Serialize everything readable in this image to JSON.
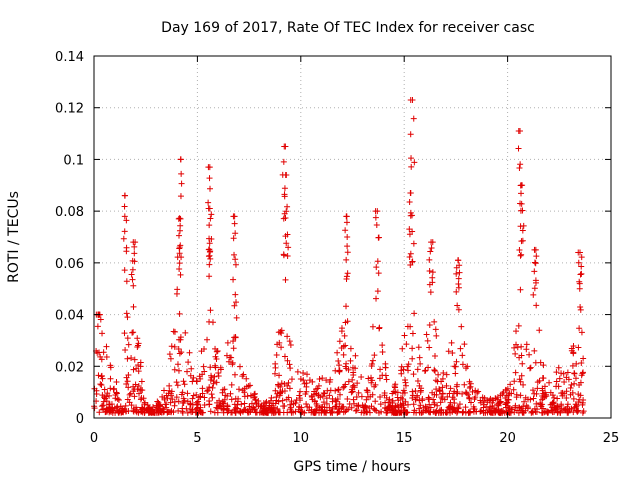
{
  "chart_data": {
    "type": "scatter",
    "title": "Day 169 of 2017, Rate Of TEC Index for receiver casc",
    "xlabel": "GPS time / hours",
    "ylabel": "ROTI / TECUs",
    "xlim": [
      0,
      25
    ],
    "ylim": [
      0,
      0.14
    ],
    "xticks": [
      0,
      5,
      10,
      15,
      20,
      25
    ],
    "yticks": [
      0,
      0.02,
      0.04,
      0.06,
      0.08,
      0.1,
      0.12,
      0.14
    ],
    "xtick_labels": [
      "0",
      "5",
      "10",
      "15",
      "20",
      "25"
    ],
    "ytick_labels": [
      "0",
      "0.02",
      "0.04",
      "0.06",
      "0.08",
      "0.1",
      "0.12",
      "0.14"
    ],
    "grid": true,
    "marker": "plus",
    "color": "#e00000",
    "series": [
      {
        "name": "ROTI",
        "x_range": [
          0,
          23.7
        ],
        "peaks": [
          {
            "x": 0.2,
            "y": 0.04
          },
          {
            "x": 1.5,
            "y": 0.086
          },
          {
            "x": 1.9,
            "y": 0.068
          },
          {
            "x": 4.2,
            "y": 0.1
          },
          {
            "x": 4.1,
            "y": 0.077
          },
          {
            "x": 5.6,
            "y": 0.097
          },
          {
            "x": 5.6,
            "y": 0.081
          },
          {
            "x": 6.8,
            "y": 0.078
          },
          {
            "x": 9.2,
            "y": 0.105
          },
          {
            "x": 9.3,
            "y": 0.094
          },
          {
            "x": 12.2,
            "y": 0.078
          },
          {
            "x": 13.7,
            "y": 0.08
          },
          {
            "x": 15.4,
            "y": 0.123
          },
          {
            "x": 15.3,
            "y": 0.087
          },
          {
            "x": 16.3,
            "y": 0.068
          },
          {
            "x": 17.6,
            "y": 0.061
          },
          {
            "x": 20.6,
            "y": 0.111
          },
          {
            "x": 20.7,
            "y": 0.09
          },
          {
            "x": 21.3,
            "y": 0.065
          },
          {
            "x": 23.5,
            "y": 0.064
          }
        ],
        "baseline_min": 0.002,
        "typical_max": 0.04
      }
    ]
  }
}
